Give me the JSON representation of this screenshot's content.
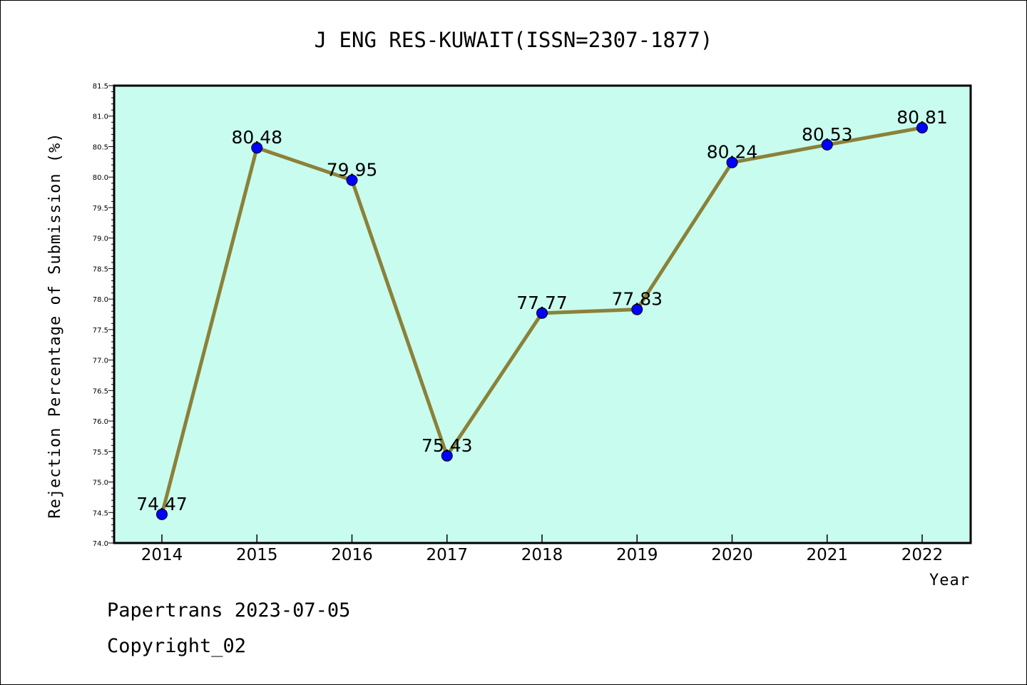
{
  "chart_data": {
    "type": "line",
    "title": "J ENG RES-KUWAIT(ISSN=2307-1877)",
    "xlabel": "Year",
    "ylabel": "Rejection Percentage of Submission (%)",
    "categories": [
      "2014",
      "2015",
      "2016",
      "2017",
      "2018",
      "2019",
      "2020",
      "2021",
      "2022"
    ],
    "series": [
      {
        "values": [
          74.47,
          80.48,
          79.95,
          75.43,
          77.77,
          77.83,
          80.24,
          80.53,
          80.81
        ],
        "labels": [
          "74.47",
          "80.48",
          "79.95",
          "75.43",
          "77.77",
          "77.83",
          "80.24",
          "80.53",
          "80.81"
        ]
      }
    ],
    "ylim": [
      74.0,
      81.5
    ],
    "yticks": [
      "74.0",
      "74.5",
      "75.0",
      "75.5",
      "76.0",
      "76.5",
      "77.0",
      "77.5",
      "78.0",
      "78.5",
      "79.0",
      "79.5",
      "80.0",
      "80.5",
      "81.0",
      "81.5"
    ],
    "grid": false,
    "colors": {
      "plot_background": "#c8fcee",
      "line": "#8b8139",
      "marker": "#0000ff"
    }
  },
  "footer": {
    "line1": "Papertrans 2023-07-05",
    "line2": "Copyright_02"
  }
}
